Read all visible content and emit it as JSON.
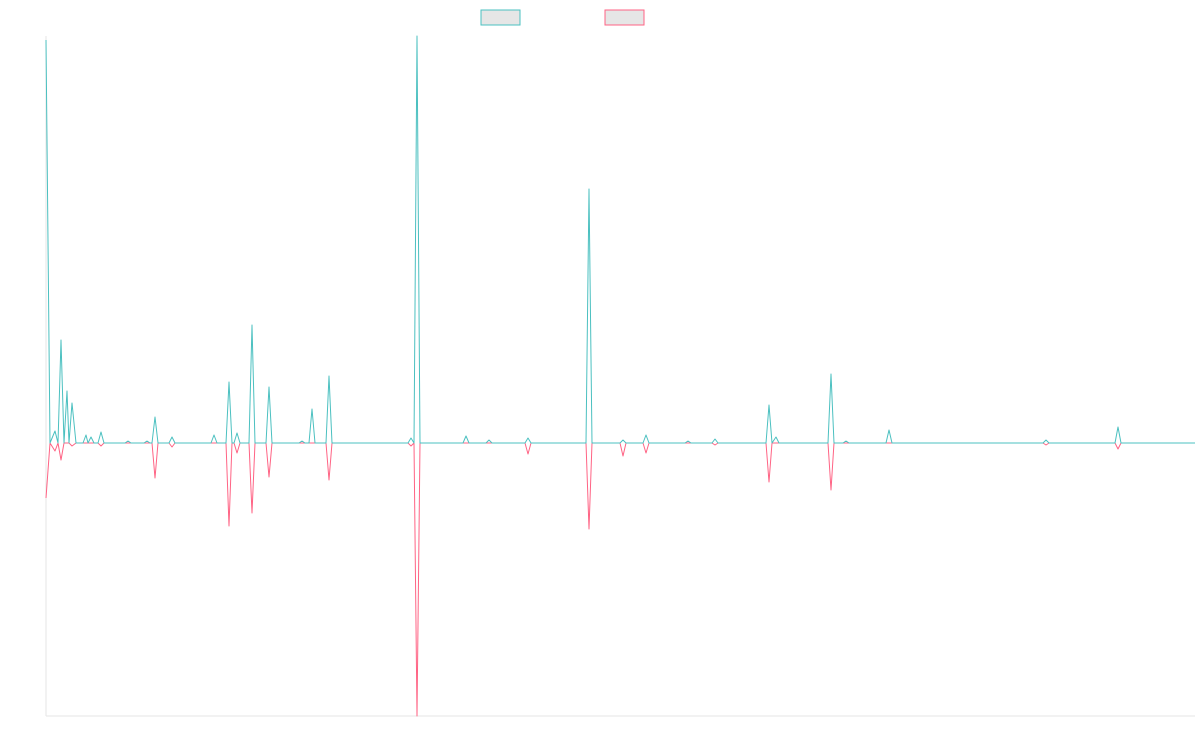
{
  "chart_data": {
    "type": "line",
    "x": [
      0,
      4,
      9,
      12,
      15,
      18,
      21,
      23,
      26,
      30,
      37,
      40,
      42,
      45,
      48,
      52,
      55,
      58,
      79,
      82,
      85,
      98,
      101,
      104,
      106,
      109,
      112,
      123,
      126,
      129,
      165,
      168,
      171,
      180,
      183,
      186,
      188,
      191,
      194,
      203,
      206,
      209,
      220,
      223,
      226,
      253,
      256,
      259,
      263,
      266,
      269,
      280,
      283,
      286,
      362,
      365,
      368,
      371,
      374,
      417,
      420,
      423,
      440,
      443,
      446,
      479,
      482,
      485,
      540,
      543,
      546,
      574,
      577,
      580,
      597,
      600,
      603,
      639,
      642,
      645,
      666,
      669,
      672,
      720,
      723,
      726,
      730,
      733,
      782,
      785,
      788,
      797,
      800,
      803,
      840,
      843,
      846,
      997,
      1000,
      1003,
      1069,
      1072,
      1075,
      1149
    ],
    "series": [
      {
        "color": "#ff6384",
        "values": [
          -55,
          0,
          -8,
          0,
          -17,
          0,
          0,
          0,
          -3,
          0,
          0,
          0,
          0,
          0,
          0,
          0,
          -3,
          0,
          0,
          0,
          0,
          0,
          0,
          0,
          0,
          -35,
          0,
          0,
          -4,
          0,
          0,
          0,
          0,
          0,
          -83,
          0,
          0,
          -10,
          0,
          0,
          -70,
          0,
          0,
          -34,
          0,
          0,
          0,
          0,
          0,
          0,
          0,
          0,
          -37,
          0,
          0,
          -3,
          0,
          -273,
          0,
          0,
          0,
          0,
          0,
          0,
          0,
          0,
          -11,
          0,
          0,
          -86,
          0,
          0,
          -13,
          0,
          0,
          -10,
          0,
          0,
          0,
          0,
          0,
          -2,
          0,
          0,
          -39,
          0,
          0,
          0,
          0,
          -47,
          0,
          0,
          0,
          0,
          0,
          0,
          0,
          0,
          -2,
          0,
          0,
          -6,
          0,
          0
        ]
      },
      {
        "color": "#4bc0c0",
        "values": [
          403,
          0,
          12,
          0,
          103,
          0,
          52,
          0,
          40,
          0,
          0,
          8,
          0,
          6,
          0,
          0,
          11,
          0,
          0,
          2,
          0,
          0,
          2,
          0,
          0,
          26,
          0,
          0,
          6,
          0,
          0,
          8,
          0,
          0,
          61,
          0,
          0,
          10,
          0,
          0,
          118,
          0,
          0,
          56,
          0,
          0,
          2,
          0,
          0,
          34,
          0,
          0,
          67,
          0,
          0,
          5,
          0,
          407,
          0,
          0,
          7,
          0,
          0,
          3,
          0,
          0,
          5,
          0,
          0,
          254,
          0,
          0,
          3,
          0,
          0,
          8,
          0,
          0,
          2,
          0,
          0,
          4,
          0,
          0,
          38,
          0,
          6,
          0,
          0,
          69,
          0,
          0,
          2,
          0,
          0,
          13,
          0,
          0,
          3,
          0,
          0,
          16,
          0,
          0
        ]
      }
    ],
    "xlim": [
      0,
      1149
    ],
    "ylim": [
      -273,
      407
    ]
  }
}
